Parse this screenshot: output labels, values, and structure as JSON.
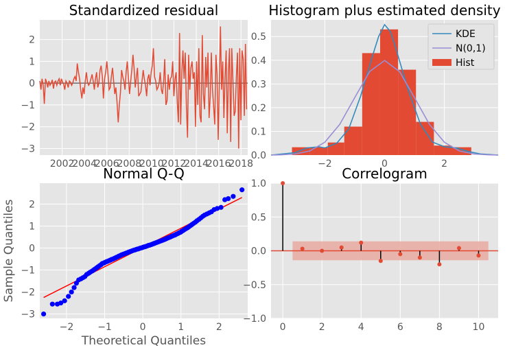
{
  "colors": {
    "panel_background": "#e5e5e5",
    "grid": "#ffffff",
    "residual_line": "#e24a33",
    "zero_line": "#777777",
    "hist_bar": "#e24a33",
    "kde_line": "#348abd",
    "normal_line": "#988ed5",
    "qq_points": "#0000ff",
    "qq_reference": "#ff0000",
    "acf_marker": "#e24a33",
    "acf_stem": "#000000",
    "confidence_band": "#e8aaa0"
  },
  "chart_data": [
    {
      "id": "standardized-residual",
      "type": "line",
      "title": "Standardized residual",
      "xlim": [
        2000.0,
        2018.6
      ],
      "ylim": [
        -3.3,
        2.9
      ],
      "xticks": [
        2002,
        2004,
        2006,
        2008,
        2010,
        2012,
        2014,
        2016,
        2018
      ],
      "yticks": [
        -3,
        -2,
        -1,
        0,
        1,
        2
      ],
      "x_start": 2000.0,
      "x_end": 2018.5,
      "values": [
        0.1,
        -0.3,
        0.2,
        -0.1,
        -0.95,
        0.2,
        0.05,
        -0.2,
        0.1,
        -0.1,
        0.0,
        0.15,
        -0.25,
        0.05,
        0.1,
        -0.1,
        0.1,
        0.2,
        -0.1,
        0.2,
        0.05,
        -0.05,
        -0.3,
        0.1,
        0.0,
        -0.2,
        0.1,
        0.05,
        -0.1,
        0.0,
        0.2,
        0.3,
        0.1,
        0.9,
        0.5,
        0.2,
        -0.3,
        -0.7,
        -0.2,
        -0.5,
        0.1,
        0.5,
        0.05,
        -0.1,
        0.0,
        0.2,
        0.4,
        0.1,
        -0.3,
        0.2,
        0.5,
        -0.2,
        0.0,
        0.6,
        0.8,
        0.3,
        -0.7,
        0.2,
        0.5,
        1.0,
        0.4,
        -0.3,
        -0.2,
        0.3,
        0.7,
        0.1,
        -0.5,
        -0.2,
        -0.9,
        -1.8,
        -1.0,
        -0.4,
        0.6,
        0.3,
        0.1,
        -0.3,
        0.5,
        1.0,
        0.2,
        -0.5,
        0.1,
        0.6,
        1.3,
        0.7,
        -0.2,
        0.3,
        0.7,
        -0.6,
        -0.5,
        -0.4,
        0.1,
        0.6,
        0.2,
        -0.1,
        -0.6,
        0.2,
        0.4,
        -0.1,
        0.5,
        0.8,
        1.6,
        0.3,
        0.1,
        -0.3,
        -0.2,
        0.0,
        0.5,
        -0.3,
        -0.5,
        0.1,
        1.1,
        -1.0,
        -0.8,
        0.4,
        -0.3,
        0.2,
        0.3,
        1.0,
        -0.6,
        0.2,
        0.5,
        -0.9,
        -1.8,
        2.3,
        -1.9,
        0.5,
        1.5,
        0.2,
        1.4,
        -1.0,
        -2.5,
        1.3,
        -0.3,
        0.7,
        1.0,
        0.2,
        0.5,
        -2.0,
        1.0,
        -1.0,
        1.6,
        -1.5,
        -1.8,
        2.2,
        -0.5,
        -1.2,
        1.2,
        -0.2,
        1.4,
        -1.6,
        -0.6,
        1.4,
        -0.3,
        -1.1,
        -1.9,
        1.3,
        0.4,
        -2.6,
        -0.1,
        2.6,
        -0.3,
        1.0,
        -1.6,
        0.2,
        1.5,
        -2.3,
        0.5,
        1.6,
        -2.7,
        1.6,
        0.1,
        -1.5,
        -1.3,
        0.3,
        1.4,
        -3.0,
        1.6,
        -1.7,
        1.5,
        1.1,
        -1.5,
        1.8,
        -1.2
      ]
    },
    {
      "id": "histogram-density",
      "type": "bar",
      "title": "Histogram plus estimated density",
      "xlim": [
        -3.8,
        3.8
      ],
      "ylim": [
        0,
        0.57
      ],
      "xticks": [
        -2,
        0,
        2
      ],
      "yticks": [
        0.0,
        0.1,
        0.2,
        0.3,
        0.4,
        0.5
      ],
      "legend_position": "top-right",
      "legend": [
        "KDE",
        "N(0,1)",
        "Hist"
      ],
      "histogram": {
        "bin_edges": [
          -3.1,
          -2.5,
          -1.9,
          -1.35,
          -0.75,
          -0.15,
          0.45,
          1.05,
          1.65,
          2.25,
          2.9
        ],
        "density": [
          0.033,
          0.033,
          0.053,
          0.12,
          0.43,
          0.53,
          0.36,
          0.14,
          0.04,
          0.033
        ]
      },
      "series": [
        {
          "name": "KDE",
          "x": [
            -3.8,
            -3.0,
            -2.6,
            -2.2,
            -2.0,
            -1.6,
            -1.2,
            -0.8,
            -0.4,
            -0.2,
            0.0,
            0.2,
            0.4,
            0.8,
            1.2,
            1.6,
            2.0,
            2.4,
            2.8,
            3.2,
            3.8
          ],
          "y": [
            0.0,
            0.01,
            0.03,
            0.035,
            0.03,
            0.05,
            0.11,
            0.25,
            0.42,
            0.5,
            0.55,
            0.52,
            0.44,
            0.27,
            0.13,
            0.055,
            0.035,
            0.03,
            0.015,
            0.005,
            0.0
          ]
        },
        {
          "name": "N(0,1)",
          "x": [
            -3.8,
            -3.5,
            -3.0,
            -2.5,
            -2.0,
            -1.5,
            -1.0,
            -0.5,
            0.0,
            0.5,
            1.0,
            1.5,
            2.0,
            2.5,
            3.0,
            3.5,
            3.8
          ],
          "y": [
            0.0003,
            0.0009,
            0.0044,
            0.0175,
            0.054,
            0.1295,
            0.242,
            0.352,
            0.399,
            0.352,
            0.242,
            0.1295,
            0.054,
            0.0175,
            0.0044,
            0.0009,
            0.0003
          ]
        }
      ]
    },
    {
      "id": "normal-qq",
      "type": "scatter",
      "title": "Normal Q-Q",
      "xlabel": "Theoretical Quantiles",
      "ylabel": "Sample Quantiles",
      "xlim": [
        -2.7,
        2.75
      ],
      "ylim": [
        -3.2,
        2.95
      ],
      "xticks": [
        -2,
        -1,
        0,
        1,
        2
      ],
      "yticks": [
        -3,
        -2,
        -1,
        0,
        1,
        2
      ],
      "reference_line": {
        "x": [
          -2.6,
          2.6
        ],
        "y": [
          -2.25,
          2.3
        ]
      },
      "points": {
        "theoretical": [
          -2.6,
          -2.37,
          -2.24,
          -2.15,
          -2.05,
          -1.95,
          -1.87,
          -1.8,
          -1.74,
          -1.68,
          -1.62,
          -1.57,
          -1.52,
          -1.47,
          -1.42,
          -1.38,
          -1.33,
          -1.29,
          -1.25,
          -1.21,
          -1.17,
          -1.13,
          -1.09,
          -1.06,
          -1.02,
          -0.99,
          -0.95,
          -0.92,
          -0.88,
          -0.85,
          -0.82,
          -0.78,
          -0.75,
          -0.72,
          -0.69,
          -0.66,
          -0.63,
          -0.6,
          -0.57,
          -0.54,
          -0.51,
          -0.48,
          -0.45,
          -0.42,
          -0.39,
          -0.36,
          -0.33,
          -0.3,
          -0.27,
          -0.24,
          -0.21,
          -0.18,
          -0.15,
          -0.12,
          -0.09,
          -0.06,
          -0.03,
          0.0,
          0.03,
          0.06,
          0.09,
          0.12,
          0.15,
          0.18,
          0.21,
          0.24,
          0.27,
          0.3,
          0.33,
          0.36,
          0.39,
          0.42,
          0.45,
          0.48,
          0.51,
          0.54,
          0.57,
          0.6,
          0.63,
          0.66,
          0.69,
          0.72,
          0.75,
          0.78,
          0.82,
          0.85,
          0.88,
          0.92,
          0.95,
          0.99,
          1.02,
          1.06,
          1.09,
          1.13,
          1.17,
          1.21,
          1.25,
          1.29,
          1.33,
          1.38,
          1.42,
          1.47,
          1.52,
          1.57,
          1.62,
          1.68,
          1.74,
          1.8,
          1.87,
          1.95,
          2.05,
          2.15,
          2.24,
          2.37,
          2.6
        ],
        "sample": [
          -3.0,
          -2.55,
          -2.55,
          -2.5,
          -2.4,
          -2.2,
          -2.0,
          -1.8,
          -1.6,
          -1.45,
          -1.4,
          -1.35,
          -1.3,
          -1.2,
          -1.15,
          -1.1,
          -1.05,
          -1.0,
          -0.95,
          -0.9,
          -0.85,
          -0.8,
          -0.75,
          -0.7,
          -0.68,
          -0.65,
          -0.62,
          -0.6,
          -0.57,
          -0.55,
          -0.52,
          -0.5,
          -0.47,
          -0.45,
          -0.42,
          -0.4,
          -0.37,
          -0.35,
          -0.32,
          -0.3,
          -0.28,
          -0.26,
          -0.24,
          -0.22,
          -0.2,
          -0.18,
          -0.16,
          -0.14,
          -0.12,
          -0.1,
          -0.09,
          -0.07,
          -0.05,
          -0.04,
          -0.02,
          0.0,
          0.01,
          0.03,
          0.05,
          0.06,
          0.08,
          0.1,
          0.12,
          0.13,
          0.15,
          0.17,
          0.19,
          0.21,
          0.23,
          0.25,
          0.27,
          0.29,
          0.31,
          0.33,
          0.35,
          0.37,
          0.39,
          0.41,
          0.44,
          0.46,
          0.48,
          0.5,
          0.53,
          0.55,
          0.58,
          0.6,
          0.63,
          0.66,
          0.69,
          0.72,
          0.76,
          0.8,
          0.84,
          0.88,
          0.92,
          0.97,
          1.02,
          1.07,
          1.12,
          1.18,
          1.24,
          1.3,
          1.37,
          1.44,
          1.5,
          1.55,
          1.6,
          1.65,
          1.75,
          1.8,
          1.85,
          2.2,
          2.25,
          2.35,
          2.65
        ]
      }
    },
    {
      "id": "correlogram",
      "type": "scatter",
      "title": "Correlogram",
      "xlim": [
        -0.6,
        11.0
      ],
      "ylim": [
        -1.0,
        1.0
      ],
      "xticks": [
        0,
        2,
        4,
        6,
        8,
        10
      ],
      "yticks": [
        -1.0,
        -0.5,
        0.0,
        0.5,
        1.0
      ],
      "lags": [
        0,
        1,
        2,
        3,
        4,
        5,
        6,
        7,
        8,
        9,
        10
      ],
      "acf": [
        1.0,
        0.03,
        0.0,
        0.05,
        0.12,
        -0.15,
        -0.05,
        -0.1,
        -0.2,
        0.04,
        -0.07
      ],
      "confidence_band": {
        "x": [
          0.5,
          10.5
        ],
        "lower": -0.14,
        "upper": 0.14
      }
    }
  ]
}
